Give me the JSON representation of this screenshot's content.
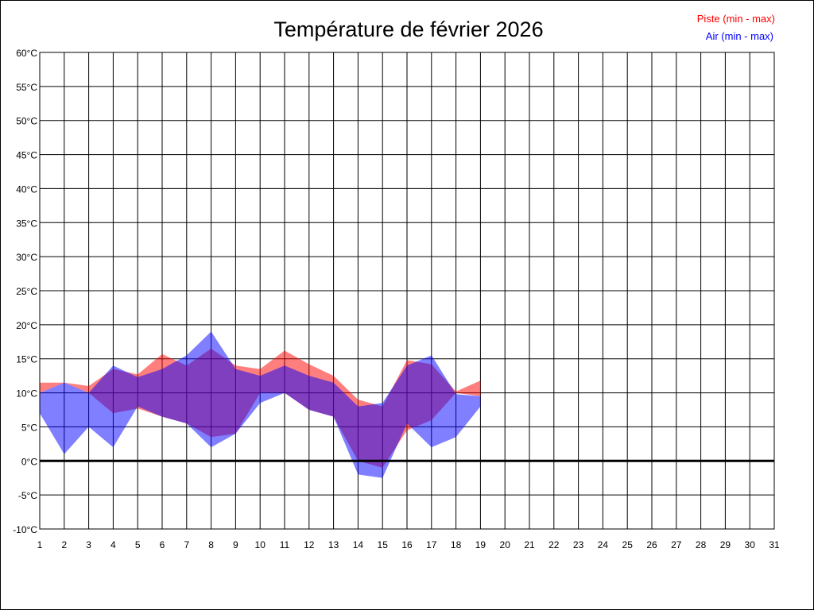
{
  "chart_data": {
    "type": "area",
    "title": "Température de février 2026",
    "x_categories": [
      "1",
      "2",
      "3",
      "4",
      "5",
      "6",
      "7",
      "8",
      "9",
      "10",
      "11",
      "12",
      "13",
      "14",
      "15",
      "16",
      "17",
      "18",
      "19",
      "20",
      "21",
      "22",
      "23",
      "24",
      "25",
      "26",
      "27",
      "28",
      "29",
      "30",
      "31"
    ],
    "y_ticks": [
      "60°C",
      "55°C",
      "50°C",
      "45°C",
      "40°C",
      "35°C",
      "30°C",
      "25°C",
      "20°C",
      "15°C",
      "10°C",
      "5°C",
      "0°C",
      "-5°C",
      "-10°C"
    ],
    "ylim": [
      -10,
      60
    ],
    "grid": true,
    "legend_placement": "top-right",
    "series": [
      {
        "name": "Piste (min - max)",
        "color": "#ff0000",
        "days": [
          1,
          2,
          3,
          4,
          5,
          6,
          7,
          8,
          9,
          10,
          11,
          12,
          13,
          14,
          15,
          16,
          17,
          18,
          19
        ],
        "min": [
          10.0,
          11.5,
          10.0,
          7.0,
          7.7,
          6.5,
          5.5,
          3.5,
          4.0,
          10.0,
          10.0,
          7.5,
          6.5,
          0.0,
          -1.0,
          4.5,
          6.0,
          10.0,
          9.5
        ],
        "max": [
          11.5,
          11.5,
          11.0,
          13.5,
          12.7,
          15.7,
          14.0,
          16.5,
          14.0,
          13.5,
          16.2,
          14.2,
          12.5,
          9.0,
          8.0,
          14.8,
          14.2,
          10.2,
          11.8
        ]
      },
      {
        "name": "Air (min - max)",
        "color": "#0000ff",
        "days": [
          1,
          2,
          3,
          4,
          5,
          6,
          7,
          8,
          9,
          10,
          11,
          12,
          13,
          14,
          15,
          16,
          17,
          18,
          19
        ],
        "min": [
          7.0,
          1.0,
          5.0,
          2.0,
          8.0,
          6.5,
          5.5,
          2.0,
          4.0,
          8.5,
          10.0,
          7.5,
          6.5,
          -2.0,
          -2.5,
          5.5,
          2.0,
          3.5,
          8.0
        ],
        "max": [
          10.0,
          11.5,
          10.0,
          14.0,
          12.3,
          13.5,
          15.5,
          19.0,
          13.5,
          12.5,
          14.0,
          12.5,
          11.5,
          8.0,
          8.5,
          14.0,
          15.5,
          9.8,
          9.5
        ]
      }
    ]
  },
  "colors": {
    "piste_fill": "#ff0000",
    "air_fill": "#0000ff",
    "grid": "#000000",
    "zero_line": "#000000"
  }
}
